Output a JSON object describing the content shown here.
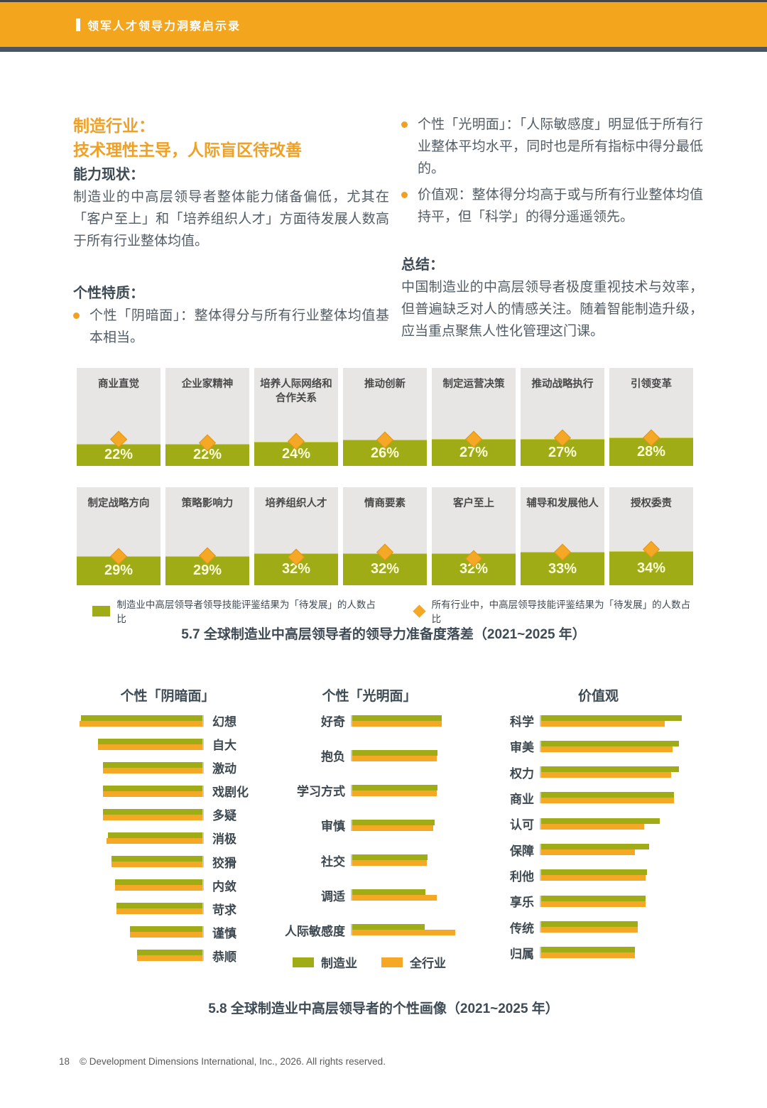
{
  "header": {
    "title": "领军人才领导力洞察启示录"
  },
  "intro": {
    "heading_line1": "制造行业：",
    "heading_line2": "技术理性主导，人际盲区待改善",
    "ability_title": "能力现状：",
    "ability_body": "制造业的中高层领导者整体能力储备偏低，尤其在「客户至上」和「培养组织人才」方面待发展人数高于所有行业整体均值。",
    "personality_title": "个性特质：",
    "bullets_left": [
      "个性「阴暗面」：整体得分与所有行业整体均值基本相当。"
    ],
    "bullets_right": [
      "个性「光明面」：「人际敏感度」明显低于所有行业整体平均水平，同时也是所有指标中得分最低的。",
      "价值观：整体得分均高于或与所有行业整体均值持平，但「科学」的得分遥遥领先。"
    ],
    "summary_title": "总结：",
    "summary_body": "中国制造业的中高层领导者极度重视技术与效率，但普遍缺乏对人的情感关注。随着智能制造升级，应当重点聚焦人性化管理这门课。"
  },
  "colors": {
    "accent_orange": "#f2a51d",
    "olive_green": "#9fac15",
    "diamond_orange": "#f5a826",
    "dark_slate": "#3e4a54",
    "card_gray": "#e7e6e4"
  },
  "chart_data": [
    {
      "id": "readiness-gap",
      "type": "bar",
      "title": "5.7 全球制造业中高层领导者的领导力准备度落差（2021~2025 年）",
      "unit": "%",
      "ylim": [
        0,
        100
      ],
      "legend": [
        {
          "label": "制造业中高层领导者领导技能评鉴结果为「待发展」的人数占比",
          "marker": "square",
          "color": "#9fac15"
        },
        {
          "label": "所有行业中，中高层领导技能评鉴结果为「待发展」的人数占比",
          "marker": "diamond",
          "color": "#f5a826"
        }
      ],
      "rows": [
        {
          "cells": [
            {
              "label": "商业直觉",
              "manufacturing": 22,
              "all_industry": 27
            },
            {
              "label": "企业家精神",
              "manufacturing": 22,
              "all_industry": 23
            },
            {
              "label": "培养人际网络和合作关系",
              "manufacturing": 24,
              "all_industry": 25
            },
            {
              "label": "推动创新",
              "manufacturing": 26,
              "all_industry": 26
            },
            {
              "label": "制定运营决策",
              "manufacturing": 27,
              "all_industry": 27
            },
            {
              "label": "推动战略执行",
              "manufacturing": 27,
              "all_industry": 28
            },
            {
              "label": "引领变革",
              "manufacturing": 28,
              "all_industry": 28
            }
          ]
        },
        {
          "cells": [
            {
              "label": "制定战略方向",
              "manufacturing": 29,
              "all_industry": 29
            },
            {
              "label": "策略影响力",
              "manufacturing": 29,
              "all_industry": 30
            },
            {
              "label": "培养组织人才",
              "manufacturing": 32,
              "all_industry": 28
            },
            {
              "label": "情商要素",
              "manufacturing": 32,
              "all_industry": 33
            },
            {
              "label": "客户至上",
              "manufacturing": 32,
              "all_industry": 27
            },
            {
              "label": "辅导和发展他人",
              "manufacturing": 33,
              "all_industry": 33
            },
            {
              "label": "授权委责",
              "manufacturing": 34,
              "all_industry": 36
            }
          ]
        }
      ]
    },
    {
      "id": "personality-dark-side",
      "type": "bar",
      "orientation": "horizontal-leftward",
      "title": "个性「阴暗面」",
      "xlim": [
        0,
        100
      ],
      "categories": [
        "幻想",
        "自大",
        "激动",
        "戏剧化",
        "多疑",
        "消极",
        "狡猾",
        "内敛",
        "苛求",
        "谨慎",
        "恭顺"
      ],
      "series": [
        {
          "name": "制造业",
          "values": [
            99,
            85,
            81,
            81,
            81,
            77,
            74,
            71,
            70,
            59,
            53
          ]
        },
        {
          "name": "全行业",
          "values": [
            100,
            85,
            81,
            81,
            81,
            78,
            74,
            71,
            70,
            59,
            53
          ]
        }
      ]
    },
    {
      "id": "personality-bright-side",
      "type": "bar",
      "orientation": "horizontal-rightward",
      "title": "个性「光明面」",
      "xlim": [
        0,
        100
      ],
      "categories": [
        "好奇",
        "抱负",
        "学习方式",
        "审慎",
        "社交",
        "调适",
        "人际敏感度"
      ],
      "series": [
        {
          "name": "制造业",
          "values": [
            82,
            78,
            78,
            75,
            69,
            67,
            66
          ]
        },
        {
          "name": "全行业",
          "values": [
            82,
            77,
            77,
            74,
            68,
            77,
            94
          ]
        }
      ]
    },
    {
      "id": "values",
      "type": "bar",
      "orientation": "horizontal-rightward",
      "title": "价值观",
      "xlim": [
        0,
        100
      ],
      "categories": [
        "科学",
        "审美",
        "权力",
        "商业",
        "认可",
        "保障",
        "利他",
        "享乐",
        "传统",
        "归属"
      ],
      "series": [
        {
          "name": "制造业",
          "values": [
            89,
            87,
            87,
            84,
            75,
            68,
            67,
            66,
            61,
            59
          ]
        },
        {
          "name": "全行业",
          "values": [
            78,
            83,
            82,
            84,
            65,
            59,
            66,
            66,
            61,
            59
          ]
        }
      ]
    }
  ],
  "figure2": {
    "caption": "5.8 全球制造业中高层领导者的个性画像（2021~2025 年）",
    "legend": [
      {
        "label": "制造业",
        "color": "#9fac15"
      },
      {
        "label": "全行业",
        "color": "#f5a826"
      }
    ]
  },
  "footer": {
    "page_number": "18",
    "copyright": "© Development Dimensions International, Inc., 2026. All rights reserved."
  }
}
